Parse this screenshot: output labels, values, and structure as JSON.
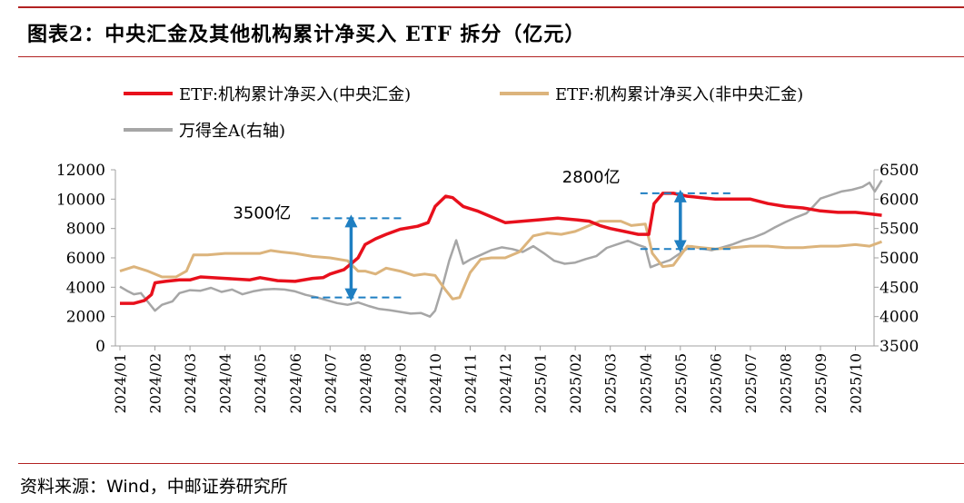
{
  "title": "图表2：中央汇金及其他机构累计净买入 ETF 拆分（亿元）",
  "source": "资料来源：Wind，中邮证券研究所",
  "colors": {
    "accent": "#b22222",
    "huijin": "#e8101c",
    "non_huijin": "#dcb47c",
    "wind_a": "#a6a6a6",
    "annotation": "#1f7fc2"
  },
  "chart_data": {
    "type": "line",
    "x_label_ticks": [
      "2024/01",
      "2024/02",
      "2024/03",
      "2024/04",
      "2024/05",
      "2024/06",
      "2024/07",
      "2024/08",
      "2024/09",
      "2024/10",
      "2024/11",
      "2024/12",
      "2025/01",
      "2025/02",
      "2025/03",
      "2025/04",
      "2025/05",
      "2025/06",
      "2025/07",
      "2025/08",
      "2025/09",
      "2025/10"
    ],
    "y_left": {
      "min": 0,
      "max": 12000,
      "ticks": [
        "0",
        "2000",
        "4000",
        "6000",
        "8000",
        "10000",
        "12000"
      ]
    },
    "y_right": {
      "min": 3500,
      "max": 6500,
      "ticks": [
        "3500",
        "4000",
        "4500",
        "5000",
        "5500",
        "6000",
        "6500"
      ]
    },
    "series": [
      {
        "name": "ETF:机构累计净买入(中央汇金)",
        "axis": "left",
        "points": [
          [
            0,
            2900
          ],
          [
            0.4,
            2900
          ],
          [
            0.7,
            3100
          ],
          [
            0.9,
            3500
          ],
          [
            1.0,
            4300
          ],
          [
            1.3,
            4400
          ],
          [
            1.7,
            4500
          ],
          [
            2.0,
            4500
          ],
          [
            2.3,
            4700
          ],
          [
            3.0,
            4600
          ],
          [
            3.7,
            4500
          ],
          [
            4.0,
            4650
          ],
          [
            4.5,
            4450
          ],
          [
            5.0,
            4400
          ],
          [
            5.5,
            4600
          ],
          [
            5.8,
            4650
          ],
          [
            6.0,
            4900
          ],
          [
            6.4,
            5200
          ],
          [
            6.6,
            5600
          ],
          [
            6.8,
            6000
          ],
          [
            7.0,
            6900
          ],
          [
            7.3,
            7300
          ],
          [
            7.6,
            7600
          ],
          [
            8.0,
            7950
          ],
          [
            8.5,
            8150
          ],
          [
            8.8,
            8400
          ],
          [
            9.0,
            9500
          ],
          [
            9.3,
            10200
          ],
          [
            9.5,
            10100
          ],
          [
            9.8,
            9500
          ],
          [
            10.2,
            9200
          ],
          [
            10.6,
            8800
          ],
          [
            11.0,
            8400
          ],
          [
            11.5,
            8500
          ],
          [
            12.0,
            8600
          ],
          [
            12.5,
            8700
          ],
          [
            13.0,
            8600
          ],
          [
            13.4,
            8500
          ],
          [
            13.7,
            8200
          ],
          [
            14.0,
            8000
          ],
          [
            14.4,
            7800
          ],
          [
            14.8,
            7600
          ],
          [
            15.1,
            7600
          ],
          [
            15.25,
            9700
          ],
          [
            15.5,
            10400
          ],
          [
            15.8,
            10400
          ],
          [
            16.2,
            10200
          ],
          [
            16.6,
            10100
          ],
          [
            17.0,
            10000
          ],
          [
            17.5,
            10000
          ],
          [
            18.0,
            10000
          ],
          [
            18.5,
            9700
          ],
          [
            19.0,
            9500
          ],
          [
            19.5,
            9400
          ],
          [
            20.0,
            9200
          ],
          [
            20.5,
            9100
          ],
          [
            21.0,
            9100
          ],
          [
            21.4,
            9000
          ],
          [
            21.75,
            8900
          ]
        ]
      },
      {
        "name": "ETF:机构累计净买入(非中央汇金)",
        "axis": "left",
        "points": [
          [
            0,
            5100
          ],
          [
            0.4,
            5400
          ],
          [
            0.8,
            5100
          ],
          [
            1.2,
            4700
          ],
          [
            1.6,
            4700
          ],
          [
            1.9,
            5100
          ],
          [
            2.1,
            6200
          ],
          [
            2.5,
            6200
          ],
          [
            3.0,
            6300
          ],
          [
            3.5,
            6300
          ],
          [
            4.0,
            6300
          ],
          [
            4.3,
            6500
          ],
          [
            4.6,
            6400
          ],
          [
            5.0,
            6300
          ],
          [
            5.5,
            6100
          ],
          [
            6.0,
            6000
          ],
          [
            6.5,
            5800
          ],
          [
            6.8,
            5100
          ],
          [
            7.0,
            5100
          ],
          [
            7.3,
            4900
          ],
          [
            7.6,
            5300
          ],
          [
            8.0,
            5100
          ],
          [
            8.4,
            4800
          ],
          [
            8.7,
            4900
          ],
          [
            9.0,
            4800
          ],
          [
            9.3,
            3800
          ],
          [
            9.5,
            3200
          ],
          [
            9.7,
            3300
          ],
          [
            10.0,
            5000
          ],
          [
            10.3,
            5900
          ],
          [
            10.6,
            6000
          ],
          [
            11.0,
            6000
          ],
          [
            11.4,
            6400
          ],
          [
            11.8,
            7500
          ],
          [
            12.2,
            7700
          ],
          [
            12.6,
            7600
          ],
          [
            13.0,
            7800
          ],
          [
            13.4,
            8200
          ],
          [
            13.7,
            8500
          ],
          [
            14.0,
            8500
          ],
          [
            14.3,
            8500
          ],
          [
            14.6,
            8200
          ],
          [
            15.0,
            8300
          ],
          [
            15.2,
            6300
          ],
          [
            15.5,
            5400
          ],
          [
            15.8,
            5500
          ],
          [
            16.2,
            6800
          ],
          [
            16.6,
            6700
          ],
          [
            17.0,
            6600
          ],
          [
            17.5,
            6700
          ],
          [
            18.0,
            6800
          ],
          [
            18.5,
            6800
          ],
          [
            19.0,
            6700
          ],
          [
            19.5,
            6700
          ],
          [
            20.0,
            6800
          ],
          [
            20.5,
            6800
          ],
          [
            21.0,
            6900
          ],
          [
            21.4,
            6800
          ],
          [
            21.75,
            7100
          ]
        ]
      },
      {
        "name": "万得全A(右轴)",
        "axis": "right",
        "points": [
          [
            0,
            4510
          ],
          [
            0.2,
            4440
          ],
          [
            0.4,
            4380
          ],
          [
            0.6,
            4400
          ],
          [
            0.8,
            4250
          ],
          [
            1.0,
            4100
          ],
          [
            1.2,
            4200
          ],
          [
            1.5,
            4260
          ],
          [
            1.7,
            4400
          ],
          [
            2.0,
            4450
          ],
          [
            2.3,
            4440
          ],
          [
            2.6,
            4490
          ],
          [
            2.9,
            4420
          ],
          [
            3.2,
            4460
          ],
          [
            3.5,
            4380
          ],
          [
            3.8,
            4430
          ],
          [
            4.1,
            4460
          ],
          [
            4.4,
            4470
          ],
          [
            4.7,
            4460
          ],
          [
            5.0,
            4430
          ],
          [
            5.3,
            4370
          ],
          [
            5.6,
            4330
          ],
          [
            5.9,
            4280
          ],
          [
            6.2,
            4230
          ],
          [
            6.5,
            4200
          ],
          [
            6.8,
            4240
          ],
          [
            7.1,
            4180
          ],
          [
            7.4,
            4130
          ],
          [
            7.7,
            4110
          ],
          [
            8.0,
            4080
          ],
          [
            8.3,
            4050
          ],
          [
            8.6,
            4060
          ],
          [
            8.85,
            4000
          ],
          [
            9.0,
            4100
          ],
          [
            9.2,
            4500
          ],
          [
            9.4,
            4950
          ],
          [
            9.6,
            5300
          ],
          [
            9.8,
            4900
          ],
          [
            10.0,
            4970
          ],
          [
            10.3,
            5050
          ],
          [
            10.6,
            5130
          ],
          [
            10.9,
            5180
          ],
          [
            11.2,
            5150
          ],
          [
            11.5,
            5100
          ],
          [
            11.8,
            5200
          ],
          [
            12.1,
            5080
          ],
          [
            12.4,
            4950
          ],
          [
            12.7,
            4900
          ],
          [
            13.0,
            4920
          ],
          [
            13.3,
            4980
          ],
          [
            13.6,
            5030
          ],
          [
            13.9,
            5170
          ],
          [
            14.2,
            5230
          ],
          [
            14.5,
            5290
          ],
          [
            14.8,
            5220
          ],
          [
            15.0,
            5180
          ],
          [
            15.15,
            4840
          ],
          [
            15.4,
            4900
          ],
          [
            15.7,
            4960
          ],
          [
            16.0,
            5080
          ],
          [
            16.3,
            5200
          ],
          [
            16.6,
            5160
          ],
          [
            16.9,
            5130
          ],
          [
            17.2,
            5180
          ],
          [
            17.5,
            5230
          ],
          [
            17.8,
            5300
          ],
          [
            18.1,
            5350
          ],
          [
            18.4,
            5420
          ],
          [
            18.7,
            5520
          ],
          [
            19.0,
            5610
          ],
          [
            19.3,
            5690
          ],
          [
            19.6,
            5760
          ],
          [
            19.8,
            5880
          ],
          [
            20.0,
            6010
          ],
          [
            20.3,
            6070
          ],
          [
            20.6,
            6130
          ],
          [
            20.9,
            6160
          ],
          [
            21.2,
            6210
          ],
          [
            21.4,
            6280
          ],
          [
            21.55,
            6130
          ],
          [
            21.75,
            6320
          ]
        ]
      }
    ],
    "annotations": [
      {
        "text": "3500亿",
        "x_month": 6.6,
        "y_top": 8700,
        "y_bottom": 3300
      },
      {
        "text": "2800亿",
        "x_month": 16.0,
        "y_top": 10400,
        "y_bottom": 6600
      }
    ]
  }
}
